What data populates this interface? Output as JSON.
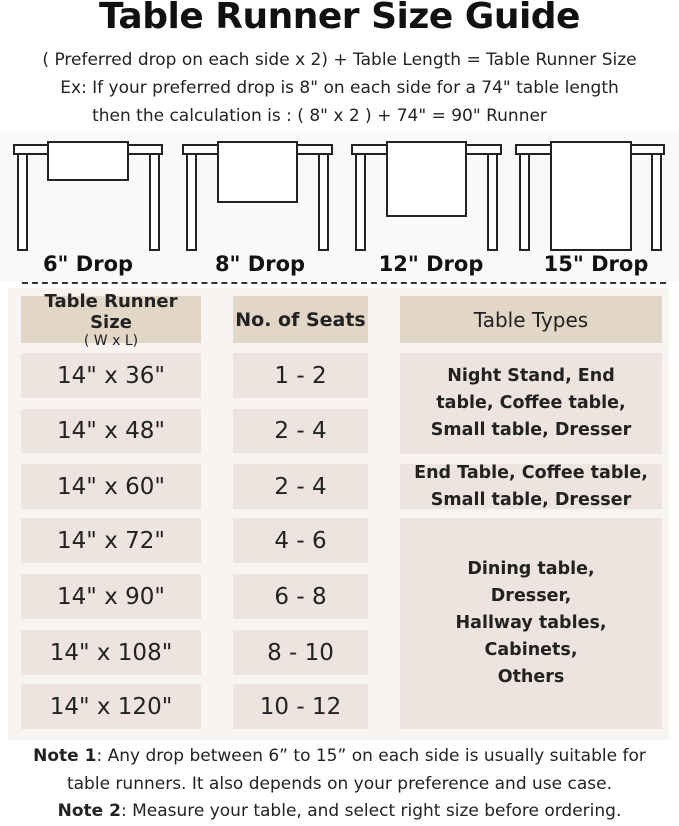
{
  "title": "Table Runner Size Guide",
  "formula": "( Preferred drop on each side x 2) + Table Length = Table Runner Size",
  "example_line1": "Ex: If your preferred drop is 8\" on each side for a 74\" table length",
  "example_line2": "then the calculation is : ( 8\" x 2 ) + 74\" = 90\" Runner",
  "drops": [
    "6\" Drop",
    "8\" Drop",
    "12\" Drop",
    "15\" Drop"
  ],
  "headers": {
    "size": "Table Runner Size",
    "size_sub": "( W x L)",
    "seats": "No. of Seats",
    "types": "Table Types"
  },
  "rows": [
    {
      "size": "14\" x 36\"",
      "seats": "1 - 2"
    },
    {
      "size": "14\" x 48\"",
      "seats": "2 - 4"
    },
    {
      "size": "14\" x 60\"",
      "seats": "2 - 4"
    },
    {
      "size": "14\" x 72\"",
      "seats": "4 - 6"
    },
    {
      "size": "14\" x 90\"",
      "seats": "6 - 8"
    },
    {
      "size": "14\" x 108\"",
      "seats": "8 - 10"
    },
    {
      "size": "14\" x 120\"",
      "seats": "10 - 12"
    }
  ],
  "types": [
    "Night Stand, End table, Coffee table, Small table, Dresser",
    "End Table, Coffee table, Small table, Dresser",
    "Dining table, Dresser, Hallway tables, Cabinets, Others"
  ],
  "notes": {
    "note1_label": "Note 1",
    "note1_text": ": Any drop between 6” to 15” on each side is usually suitable for",
    "note1_text2": "table runners. It also depends on your preference and use case.",
    "note2_label": "Note 2",
    "note2_text": ": Measure your table, and select right size before ordering."
  },
  "colors": {
    "header": "#e2d6c7",
    "cell": "#ede4e0",
    "panel": "#f8f4f1"
  }
}
